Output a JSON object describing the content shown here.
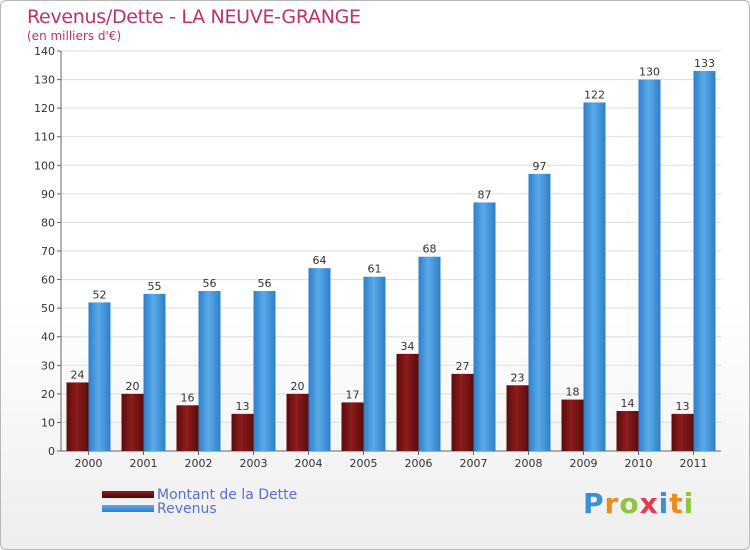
{
  "chart_data": {
    "type": "bar",
    "title": "Revenus/Dette - LA NEUVE-GRANGE",
    "subtitle": "(en milliers d'€)",
    "categories": [
      "2000",
      "2001",
      "2002",
      "2003",
      "2004",
      "2005",
      "2006",
      "2007",
      "2008",
      "2009",
      "2010",
      "2011"
    ],
    "series": [
      {
        "name": "Montant de la Dette",
        "color": "#7a1414",
        "values": [
          24,
          20,
          16,
          13,
          20,
          17,
          34,
          27,
          23,
          18,
          14,
          13
        ]
      },
      {
        "name": "Revenus",
        "color": "#4a9de0",
        "values": [
          52,
          55,
          56,
          56,
          64,
          61,
          68,
          87,
          97,
          122,
          130,
          133
        ]
      }
    ],
    "ylim": [
      0,
      140
    ],
    "yticks": [
      0,
      10,
      20,
      30,
      40,
      50,
      60,
      70,
      80,
      90,
      100,
      110,
      120,
      130,
      140
    ],
    "grid": true,
    "legend_position": "bottom-left"
  },
  "logo": {
    "letters": [
      "P",
      "r",
      "o",
      "x",
      "i",
      "t",
      "i"
    ],
    "colors": [
      "#3a8fd8",
      "#f08a1c",
      "#8cc63f",
      "#e8384f",
      "#3a8fd8",
      "#f08a1c",
      "#8cc63f"
    ]
  }
}
